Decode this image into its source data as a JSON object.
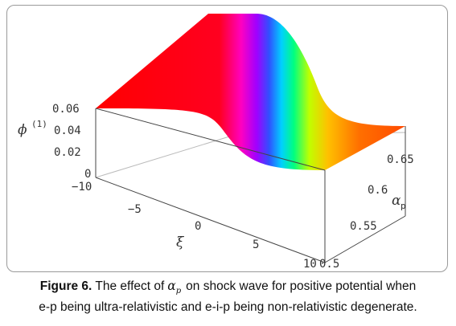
{
  "figure": {
    "z_ticks": [
      "0.06",
      "0.04",
      "0.02",
      "0"
    ],
    "z_label": "ϕ",
    "z_label_sup": "(1)",
    "x_ticks": [
      "−10",
      "−5",
      "0",
      "5",
      "10"
    ],
    "x_label": "ξ",
    "y_ticks": [
      "0.65",
      "0.6",
      "0.55",
      "0.5"
    ],
    "y_label": "α",
    "y_label_sub": "p",
    "surface_colors": [
      "#ff0000",
      "#ff00a0",
      "#b000ff",
      "#4040ff",
      "#00c8ff",
      "#00ff80",
      "#c0ff00",
      "#ffcc00",
      "#ff7800",
      "#ff4000"
    ]
  },
  "caption": {
    "label": "Figure 6.",
    "pre": " The effect of",
    "symbol": "α",
    "symbol_sub": "p",
    "post": "on shock wave for positive potential when",
    "line2": "e-p being ultra-relativistic and e-i-p being non-relativistic degenerate."
  }
}
